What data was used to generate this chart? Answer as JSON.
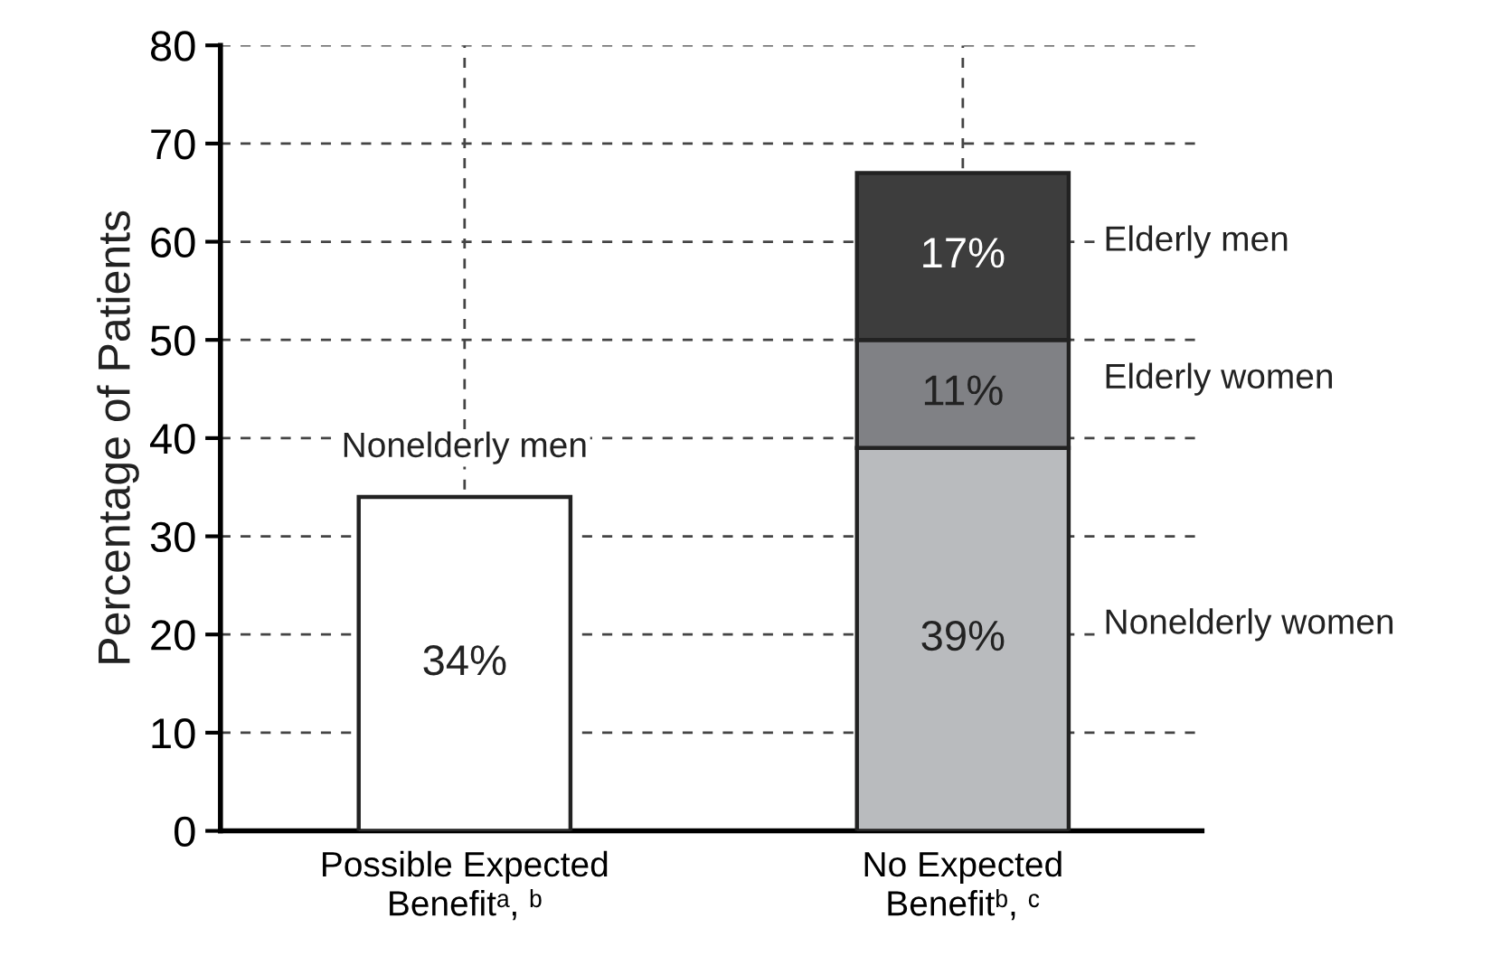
{
  "chart_data": {
    "type": "bar",
    "stacked": true,
    "ylabel": "Percentage of Patients",
    "categories": [
      "Possible Expected\nBenefitᵃ, ᵇ",
      "No Expected\nBenefitᵇ, ᶜ"
    ],
    "series": [
      {
        "name": "Nonelderly men",
        "color": "#ffffff",
        "values": [
          34,
          null
        ],
        "value_labels": [
          "34%",
          null
        ]
      },
      {
        "name": "Nonelderly women",
        "color": "#b9bbbe",
        "values": [
          null,
          39
        ],
        "value_labels": [
          null,
          "39%"
        ]
      },
      {
        "name": "Elderly women",
        "color": "#808185",
        "values": [
          null,
          11
        ],
        "value_labels": [
          null,
          "11%"
        ]
      },
      {
        "name": "Elderly men",
        "color": "#3d3d3d",
        "values": [
          null,
          17
        ],
        "value_labels": [
          null,
          "17%"
        ]
      }
    ],
    "ylim": [
      0,
      80
    ],
    "yticks": [
      0,
      10,
      20,
      30,
      40,
      50,
      60,
      70,
      80
    ],
    "grid": true,
    "legend": false
  }
}
